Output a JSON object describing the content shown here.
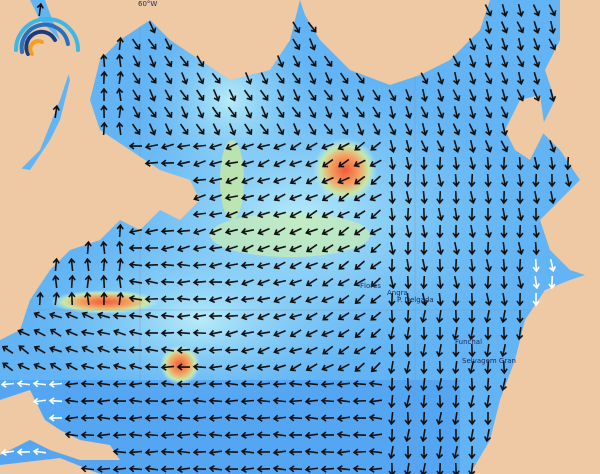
{
  "map": {
    "grid_label": "60°W",
    "places": [
      {
        "name": "Flores"
      },
      {
        "name": "Angra"
      },
      {
        "name": "P. Delgada"
      },
      {
        "name": "Funchal"
      },
      {
        "name": "Selvagem Gran"
      }
    ],
    "colors": {
      "land": "#eec9a3",
      "ocean_low": "#3d8cf0",
      "ocean_mid": "#7cc8f8",
      "ocean_light": "#b8ecf8",
      "swell_medium": "#a8e0a0",
      "swell_high": "#f5a060",
      "swell_peak": "#f06040",
      "arrow": "#111111"
    },
    "logo": "wave-logo"
  }
}
